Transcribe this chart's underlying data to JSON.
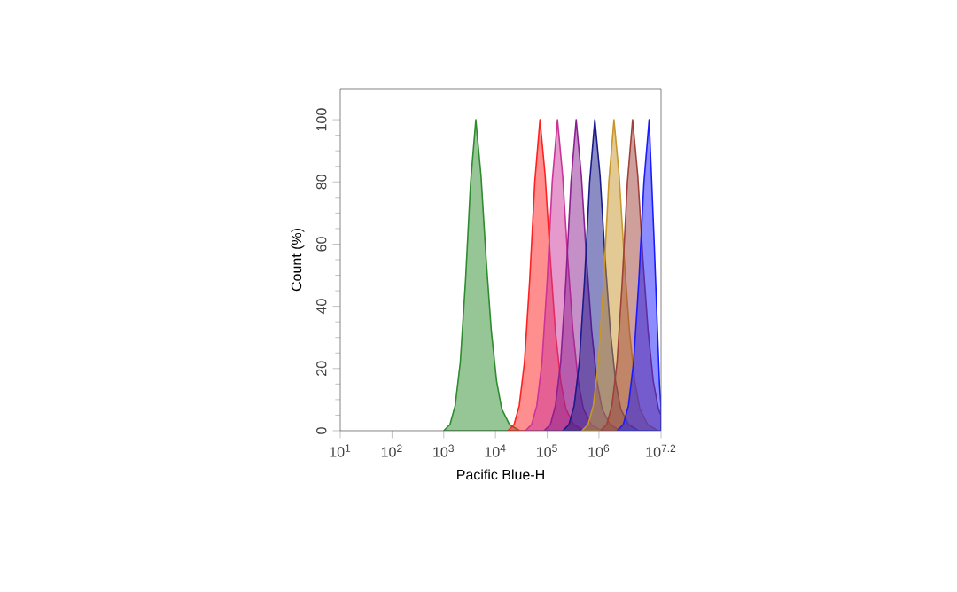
{
  "chart_data": {
    "type": "area",
    "xlabel": "Pacific Blue-H",
    "ylabel": "Count (%)",
    "log": "x",
    "xlim": [
      10,
      15848932
    ],
    "ylim": [
      0,
      110
    ],
    "xticks": [
      {
        "value": 10,
        "label": "10$^{1}$"
      },
      {
        "value": 100,
        "label": "10$^{2}$"
      },
      {
        "value": 1000,
        "label": "10$^{3}$"
      },
      {
        "value": 10000,
        "label": "10$^{4}$"
      },
      {
        "value": 100000,
        "label": "10$^{5}$"
      },
      {
        "value": 1000000,
        "label": "10$^{6}$"
      },
      {
        "value": 15848932,
        "label": "10$^{7.2}$"
      }
    ],
    "yticks": [
      0,
      20,
      40,
      60,
      80,
      100
    ],
    "grid": false,
    "marker": "none",
    "line_style": "solid",
    "series": [
      {
        "color": "#2e8b2e",
        "x": [
          1000,
          1320,
          1660,
          2090,
          2630,
          3310,
          4170,
          5250,
          6610,
          8320,
          10500,
          13200,
          18600,
          29500
        ],
        "values": [
          0,
          2,
          8,
          22,
          48,
          80,
          100,
          82,
          55,
          32,
          16,
          7,
          2,
          0
        ]
      },
      {
        "color": "#ff2020",
        "x": [
          17400,
          22900,
          28800,
          36300,
          45700,
          57500,
          72400,
          91200,
          115000,
          144000,
          182000,
          229000,
          323000,
          513000
        ],
        "values": [
          0,
          2,
          8,
          22,
          48,
          80,
          100,
          82,
          55,
          32,
          16,
          7,
          2,
          0
        ]
      },
      {
        "color": "#cc3399",
        "x": [
          37900,
          49900,
          62900,
          79200,
          99700,
          125000,
          158000,
          199000,
          250000,
          315000,
          397000,
          500000,
          706000,
          1120000
        ],
        "values": [
          0,
          2,
          8,
          22,
          48,
          80,
          100,
          82,
          55,
          32,
          16,
          7,
          2,
          0
        ]
      },
      {
        "color": "#8b2090",
        "x": [
          87100,
          115000,
          144000,
          182000,
          229000,
          288000,
          363000,
          457000,
          575000,
          724000,
          912000,
          1150000,
          1620000,
          2570000
        ],
        "values": [
          0,
          2,
          8,
          22,
          48,
          80,
          100,
          82,
          55,
          32,
          16,
          7,
          2,
          0
        ]
      },
      {
        "color": "#1a1a8c",
        "x": [
          200000,
          263000,
          331000,
          417000,
          525000,
          661000,
          832000,
          1050000,
          1320000,
          1660000,
          2090000,
          2630000,
          3720000,
          5890000
        ],
        "values": [
          0,
          2,
          8,
          22,
          48,
          80,
          100,
          82,
          55,
          32,
          16,
          7,
          2,
          0
        ]
      },
      {
        "color": "#c8962a",
        "x": [
          468000,
          616000,
          776000,
          977000,
          1230000,
          1550000,
          1950000,
          2460000,
          3090000,
          3890000,
          4900000,
          6170000,
          8710000,
          13800000
        ],
        "values": [
          0,
          2,
          8,
          22,
          48,
          80,
          100,
          82,
          55,
          32,
          16,
          7,
          2,
          0
        ]
      },
      {
        "color": "#a0403a",
        "x": [
          1070000,
          1410000,
          1780000,
          2240000,
          2820000,
          3550000,
          4470000,
          5630000,
          7080000,
          8920000,
          11200000,
          14100000,
          15800000
        ],
        "values": [
          0,
          2,
          8,
          22,
          48,
          80,
          100,
          82,
          55,
          32,
          16,
          7,
          5
        ]
      },
      {
        "color": "#1a1aff",
        "x": [
          2240000,
          2950000,
          3710000,
          4670000,
          5890000,
          7410000,
          9330000,
          11700000,
          14800000,
          15800000
        ],
        "values": [
          0,
          2,
          8,
          22,
          48,
          80,
          100,
          60,
          15,
          8
        ]
      }
    ]
  }
}
